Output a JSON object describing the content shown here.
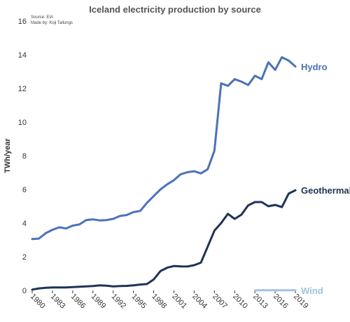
{
  "chart_data": {
    "type": "line",
    "title": "Iceland electricity production by source",
    "source_note": "Source: EIA",
    "author_note": "Made by: Koji Tallungs",
    "ylabel": "TWh/year",
    "xlabel": "",
    "ylim": [
      0,
      16
    ],
    "xlim": [
      1980,
      2019
    ],
    "y_ticks": [
      0,
      2,
      4,
      6,
      8,
      10,
      12,
      14,
      16
    ],
    "x_ticks": [
      1980,
      1983,
      1986,
      1989,
      1992,
      1995,
      1998,
      2001,
      2004,
      2007,
      2010,
      2013,
      2016,
      2019
    ],
    "grid": false,
    "legend": "end-of-line labels",
    "series": [
      {
        "name": "Hydro",
        "color": "#4a72c0",
        "x": [
          1980,
          1981,
          1982,
          1983,
          1984,
          1985,
          1986,
          1987,
          1988,
          1989,
          1990,
          1991,
          1992,
          1993,
          1994,
          1995,
          1996,
          1997,
          1998,
          1999,
          2000,
          2001,
          2002,
          2003,
          2004,
          2005,
          2006,
          2007,
          2008,
          2009,
          2010,
          2011,
          2012,
          2013,
          2014,
          2015,
          2016,
          2017,
          2018,
          2019
        ],
        "values": [
          3.05,
          3.08,
          3.4,
          3.6,
          3.75,
          3.68,
          3.85,
          3.92,
          4.18,
          4.22,
          4.16,
          4.18,
          4.25,
          4.42,
          4.48,
          4.65,
          4.72,
          5.2,
          5.6,
          6.0,
          6.3,
          6.55,
          6.9,
          7.02,
          7.08,
          6.95,
          7.2,
          8.3,
          12.3,
          12.15,
          12.55,
          12.4,
          12.2,
          12.75,
          12.55,
          13.55,
          13.1,
          13.85,
          13.65,
          13.3
        ]
      },
      {
        "name": "Geothermal",
        "color": "#1f3358",
        "x": [
          1980,
          1981,
          1982,
          1983,
          1984,
          1985,
          1986,
          1987,
          1988,
          1989,
          1990,
          1991,
          1992,
          1993,
          1994,
          1995,
          1996,
          1997,
          1998,
          1999,
          2000,
          2001,
          2002,
          2003,
          2004,
          2005,
          2006,
          2007,
          2008,
          2009,
          2010,
          2011,
          2012,
          2013,
          2014,
          2015,
          2016,
          2017,
          2018,
          2019
        ],
        "values": [
          0.05,
          0.12,
          0.16,
          0.18,
          0.18,
          0.18,
          0.2,
          0.22,
          0.24,
          0.26,
          0.3,
          0.28,
          0.24,
          0.26,
          0.27,
          0.3,
          0.35,
          0.38,
          0.65,
          1.15,
          1.35,
          1.45,
          1.43,
          1.42,
          1.5,
          1.65,
          2.6,
          3.55,
          4.0,
          4.55,
          4.25,
          4.5,
          5.05,
          5.25,
          5.25,
          5.0,
          5.08,
          4.95,
          5.75,
          5.95
        ]
      },
      {
        "name": "Wind",
        "color": "#9fc3e6",
        "x": [
          2013,
          2014,
          2015,
          2016,
          2017,
          2018,
          2019
        ],
        "values": [
          0.005,
          0.008,
          0.011,
          0.008,
          0.01,
          0.01,
          0.01
        ]
      }
    ]
  }
}
